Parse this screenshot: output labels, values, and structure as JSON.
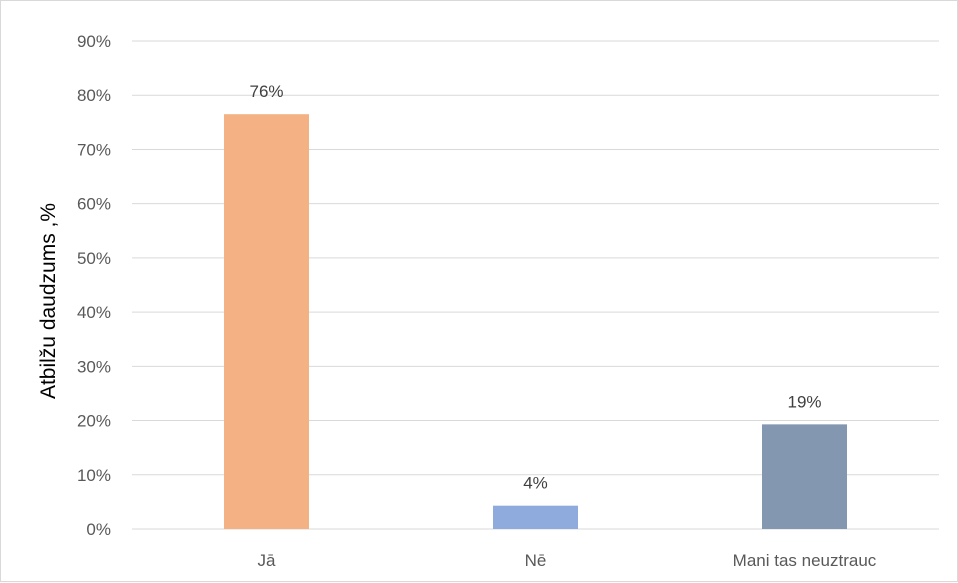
{
  "chart_data": {
    "type": "bar",
    "title": "",
    "xlabel": "",
    "ylabel": "Atbilžu  daudzums ,%",
    "categories": [
      "Jā",
      "Nē",
      "Mani tas neuztrauc"
    ],
    "values": [
      76.5,
      4.3,
      19.3
    ],
    "value_labels": [
      "76%",
      "4%",
      "19%"
    ],
    "colors": [
      "#f4b183",
      "#8faadc",
      "#8497b0"
    ],
    "ylim": [
      0,
      90
    ],
    "yticks": [
      0,
      10,
      20,
      30,
      40,
      50,
      60,
      70,
      80,
      90
    ],
    "ytick_labels": [
      "0%",
      "10%",
      "20%",
      "30%",
      "40%",
      "50%",
      "60%",
      "70%",
      "80%",
      "90%"
    ],
    "grid": true,
    "legend": "none"
  }
}
